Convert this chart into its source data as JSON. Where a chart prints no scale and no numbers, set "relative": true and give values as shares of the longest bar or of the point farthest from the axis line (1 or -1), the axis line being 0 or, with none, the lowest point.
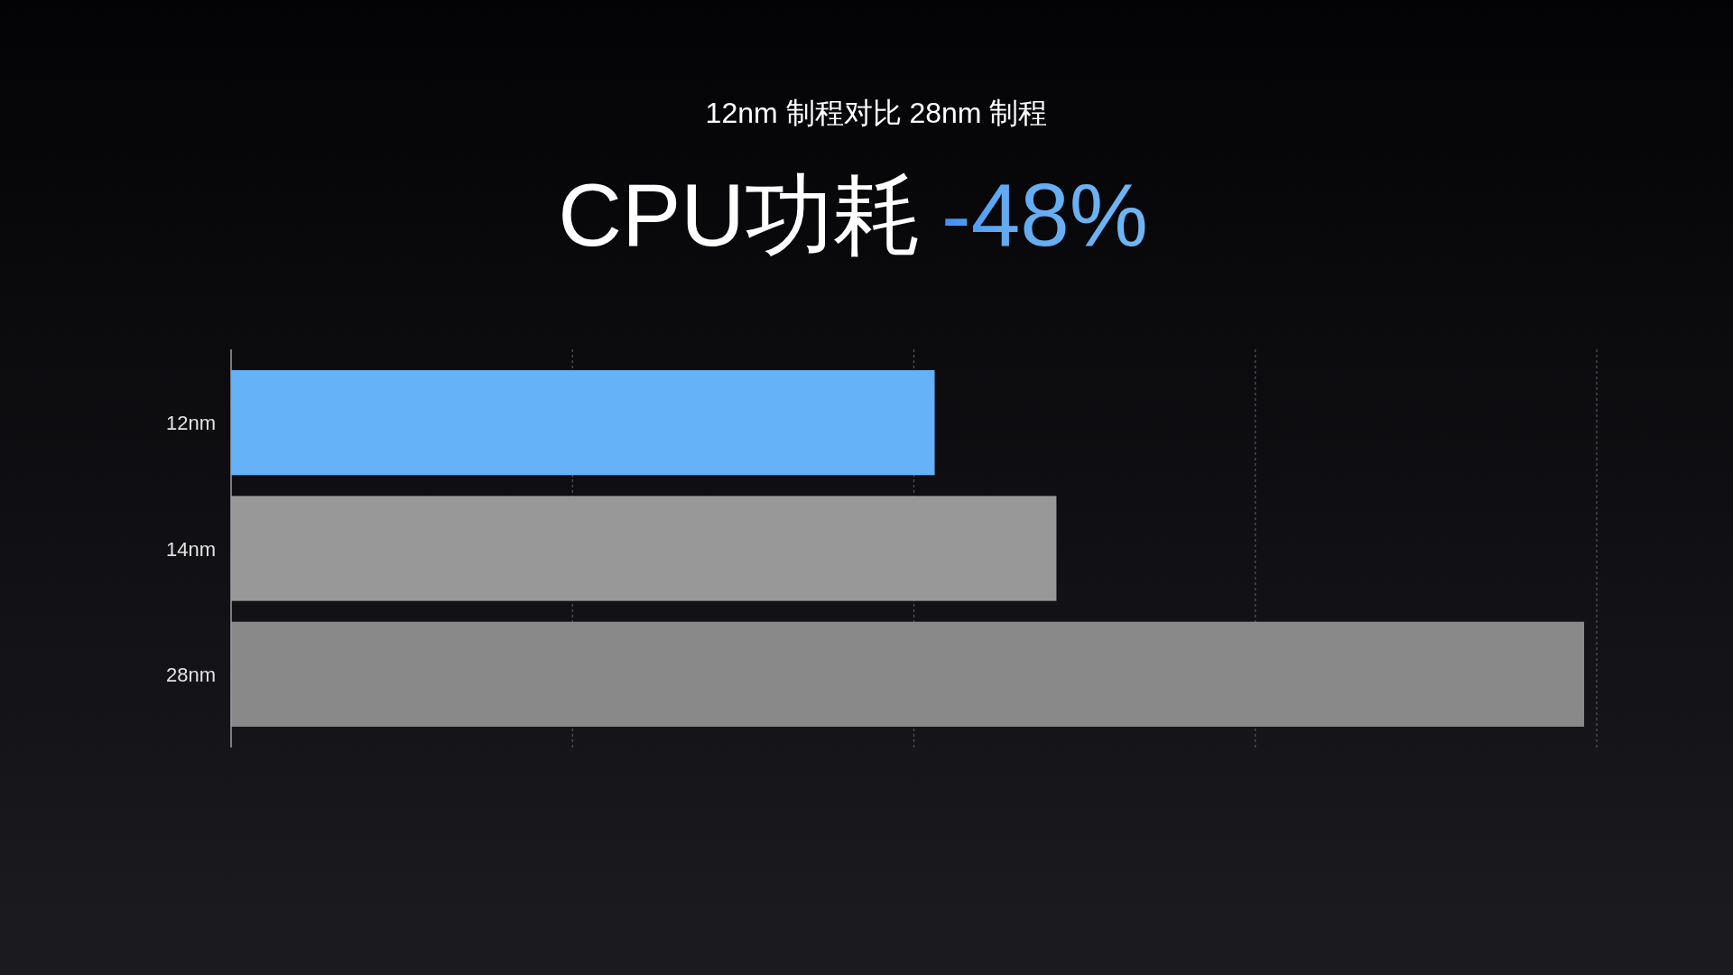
{
  "chart_data": {
    "type": "bar",
    "orientation": "horizontal",
    "relative": true,
    "title": "CPU功耗",
    "subtitle": "12nm 制程对比 28nm 制程",
    "annotations": [
      "-48%"
    ],
    "categories": [
      "12nm",
      "14nm",
      "28nm"
    ],
    "values": [
      0.52,
      0.61,
      1
    ],
    "colors": [
      "#66b2f8",
      "#989898",
      "#898989"
    ],
    "grid": "x",
    "tick_labels": "y"
  }
}
